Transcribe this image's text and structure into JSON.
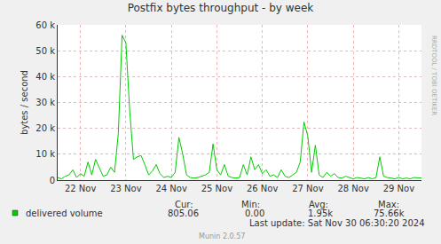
{
  "chart_data": {
    "type": "line",
    "title": "Postfix bytes throughput - by week",
    "y_label": "bytes / second",
    "categories": [
      null,
      null,
      null,
      null,
      null,
      null,
      "22 Nov",
      null,
      null,
      null,
      null,
      null,
      null,
      null,
      null,
      null,
      null,
      null,
      "23 Nov",
      null,
      null,
      null,
      null,
      null,
      null,
      null,
      null,
      null,
      null,
      null,
      "24 Nov",
      null,
      null,
      null,
      null,
      null,
      null,
      null,
      null,
      null,
      null,
      null,
      "25 Nov",
      null,
      null,
      null,
      null,
      null,
      null,
      null,
      null,
      null,
      null,
      null,
      "26 Nov",
      null,
      null,
      null,
      null,
      null,
      null,
      null,
      null,
      null,
      null,
      null,
      "27 Nov",
      null,
      null,
      null,
      null,
      null,
      null,
      null,
      null,
      null,
      null,
      null,
      "28 Nov",
      null,
      null,
      null,
      null,
      null,
      null,
      null,
      null,
      null,
      null,
      null,
      "29 Nov",
      null,
      null,
      null,
      null,
      null,
      null
    ],
    "series": [
      {
        "name": "delivered volume",
        "color": "#00cc00",
        "values": [
          1000,
          500,
          1500,
          2000,
          4000,
          1000,
          2500,
          1500,
          7000,
          2000,
          8000,
          4500,
          1500,
          2000,
          5000,
          3000,
          18000,
          56000,
          53000,
          27000,
          8000,
          9000,
          9500,
          6000,
          2000,
          3500,
          6000,
          2500,
          1000,
          1500,
          1000,
          3000,
          16500,
          10000,
          2000,
          1000,
          800,
          1000,
          1500,
          2000,
          3000,
          14000,
          4000,
          2000,
          6000,
          1500,
          1000,
          800,
          1000,
          6000,
          2000,
          9000,
          4000,
          6000,
          2500,
          4000,
          1500,
          2000,
          1000,
          4000,
          1500,
          1000,
          2000,
          3000,
          7000,
          22500,
          17000,
          3000,
          13500,
          2000,
          1000,
          3000,
          1500,
          2500,
          1000,
          800,
          1500,
          1000,
          500,
          1000,
          800,
          500,
          1000,
          500,
          1000,
          9000,
          1500,
          1000,
          800,
          500,
          1000,
          500,
          800,
          500,
          1000,
          800,
          805.06
        ]
      }
    ],
    "ylim": [
      0,
      60000
    ],
    "yticks": [
      0,
      {
        "value": 10000,
        "label": "10 k"
      },
      {
        "value": 20000,
        "label": "20 k"
      },
      {
        "value": 30000,
        "label": "30 k"
      },
      {
        "value": 40000,
        "label": "40 k"
      },
      {
        "value": 50000,
        "label": "50 k"
      },
      {
        "value": 60000,
        "label": "60 k"
      }
    ],
    "grid": true,
    "stats": {
      "labels": [
        "Cur:",
        "Min:",
        "Avg:",
        "Max:"
      ],
      "values": [
        "805.06",
        "0.00",
        "1.95k",
        "75.66k"
      ]
    },
    "footer": "Last update: Sat Nov 30 06:30:20 2024",
    "credit": "Munin 2.0.57",
    "side_text": "RRDTOOL / TOBI OETIKER"
  }
}
